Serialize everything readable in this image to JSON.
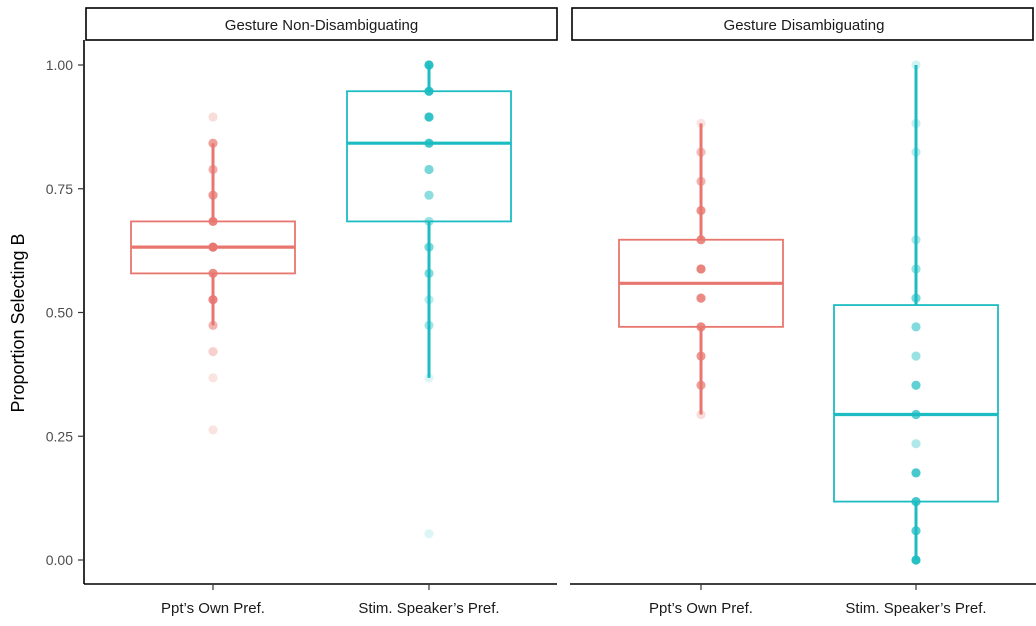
{
  "chart_data": {
    "type": "boxplot",
    "ylabel": "Proportion Selecting B",
    "ylim": [
      0,
      1.0
    ],
    "yticks": [
      {
        "value": 0,
        "label": "0.00"
      },
      {
        "value": 0.25,
        "label": "0.25"
      },
      {
        "value": 0.5,
        "label": "0.50"
      },
      {
        "value": 0.75,
        "label": "0.75"
      },
      {
        "value": 1.0,
        "label": "1.00"
      }
    ],
    "grid": false,
    "colors": {
      "own": "#E8766F",
      "stim": "#1CBCC2"
    },
    "panels": [
      {
        "title": "Gesture Non-Disambiguating",
        "groups": [
          {
            "label": "Ppt’s Own Pref.",
            "color_key": "own",
            "box": {
              "q1": 0.579,
              "median": 0.632,
              "q3": 0.684,
              "whisker_low": 0.474,
              "whisker_high": 0.842
            },
            "points": [
              {
                "y": 0.895,
                "alpha": 0.25
              },
              {
                "y": 0.842,
                "alpha": 0.7
              },
              {
                "y": 0.789,
                "alpha": 0.6
              },
              {
                "y": 0.737,
                "alpha": 0.75
              },
              {
                "y": 0.684,
                "alpha": 0.9
              },
              {
                "y": 0.632,
                "alpha": 1.0
              },
              {
                "y": 0.579,
                "alpha": 0.85
              },
              {
                "y": 0.526,
                "alpha": 0.9
              },
              {
                "y": 0.474,
                "alpha": 0.55
              },
              {
                "y": 0.421,
                "alpha": 0.35
              },
              {
                "y": 0.368,
                "alpha": 0.2
              },
              {
                "y": 0.263,
                "alpha": 0.2
              }
            ]
          },
          {
            "label": "Stim. Speaker’s Pref.",
            "color_key": "stim",
            "box": {
              "q1": 0.684,
              "median": 0.842,
              "q3": 0.947,
              "whisker_low": 0.368,
              "whisker_high": 1.0
            },
            "points": [
              {
                "y": 1.0,
                "alpha": 0.95
              },
              {
                "y": 0.947,
                "alpha": 0.95
              },
              {
                "y": 0.895,
                "alpha": 0.9
              },
              {
                "y": 0.842,
                "alpha": 0.85
              },
              {
                "y": 0.789,
                "alpha": 0.6
              },
              {
                "y": 0.737,
                "alpha": 0.5
              },
              {
                "y": 0.684,
                "alpha": 0.45
              },
              {
                "y": 0.632,
                "alpha": 0.6
              },
              {
                "y": 0.579,
                "alpha": 0.55
              },
              {
                "y": 0.526,
                "alpha": 0.3
              },
              {
                "y": 0.474,
                "alpha": 0.4
              },
              {
                "y": 0.368,
                "alpha": 0.15
              },
              {
                "y": 0.053,
                "alpha": 0.15
              }
            ]
          }
        ]
      },
      {
        "title": "Gesture Disambiguating",
        "groups": [
          {
            "label": "Ppt’s Own Pref.",
            "color_key": "own",
            "box": {
              "q1": 0.471,
              "median": 0.559,
              "q3": 0.647,
              "whisker_low": 0.294,
              "whisker_high": 0.882
            },
            "points": [
              {
                "y": 0.882,
                "alpha": 0.2
              },
              {
                "y": 0.824,
                "alpha": 0.5
              },
              {
                "y": 0.765,
                "alpha": 0.55
              },
              {
                "y": 0.706,
                "alpha": 0.8
              },
              {
                "y": 0.647,
                "alpha": 0.85
              },
              {
                "y": 0.588,
                "alpha": 0.9
              },
              {
                "y": 0.529,
                "alpha": 0.85
              },
              {
                "y": 0.471,
                "alpha": 0.85
              },
              {
                "y": 0.412,
                "alpha": 0.75
              },
              {
                "y": 0.353,
                "alpha": 0.7
              },
              {
                "y": 0.294,
                "alpha": 0.25
              }
            ]
          },
          {
            "label": "Stim. Speaker’s Pref.",
            "color_key": "stim",
            "box": {
              "q1": 0.118,
              "median": 0.294,
              "q3": 0.515,
              "whisker_low": 0.0,
              "whisker_high": 1.0
            },
            "points": [
              {
                "y": 1.0,
                "alpha": 0.2
              },
              {
                "y": 0.882,
                "alpha": 0.25
              },
              {
                "y": 0.824,
                "alpha": 0.3
              },
              {
                "y": 0.647,
                "alpha": 0.35
              },
              {
                "y": 0.588,
                "alpha": 0.45
              },
              {
                "y": 0.529,
                "alpha": 0.6
              },
              {
                "y": 0.471,
                "alpha": 0.55
              },
              {
                "y": 0.412,
                "alpha": 0.45
              },
              {
                "y": 0.353,
                "alpha": 0.7
              },
              {
                "y": 0.294,
                "alpha": 0.75
              },
              {
                "y": 0.235,
                "alpha": 0.35
              },
              {
                "y": 0.176,
                "alpha": 0.8
              },
              {
                "y": 0.118,
                "alpha": 0.85
              },
              {
                "y": 0.059,
                "alpha": 0.75
              },
              {
                "y": 0.0,
                "alpha": 0.95
              }
            ]
          }
        ]
      }
    ]
  }
}
